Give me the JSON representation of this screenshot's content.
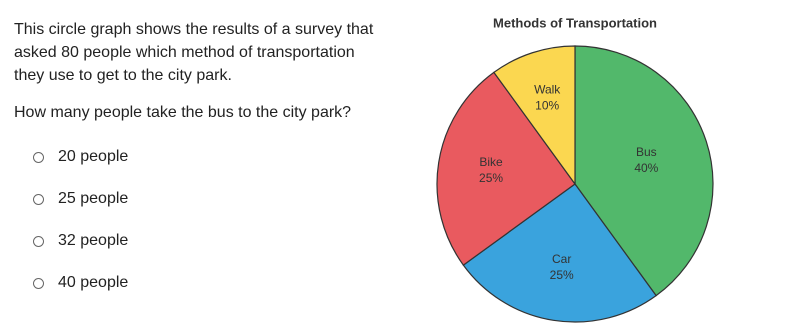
{
  "question": {
    "intro": "This circle graph shows the results of a survey that asked 80 people which method of transportation they use to get to the city park.",
    "prompt": "How many people take the bus to the city park?"
  },
  "options": [
    "20 people",
    "25 people",
    "32 people",
    "40 people"
  ],
  "chart_data": {
    "type": "pie",
    "title": "Methods of Transportation",
    "categories": [
      "Bus",
      "Car",
      "Bike",
      "Walk"
    ],
    "values": [
      40,
      25,
      25,
      10
    ],
    "value_labels": [
      "40%",
      "25%",
      "25%",
      "10%"
    ],
    "colors": [
      "#52b86b",
      "#3aa3dd",
      "#e95a5f",
      "#fbd750"
    ]
  }
}
